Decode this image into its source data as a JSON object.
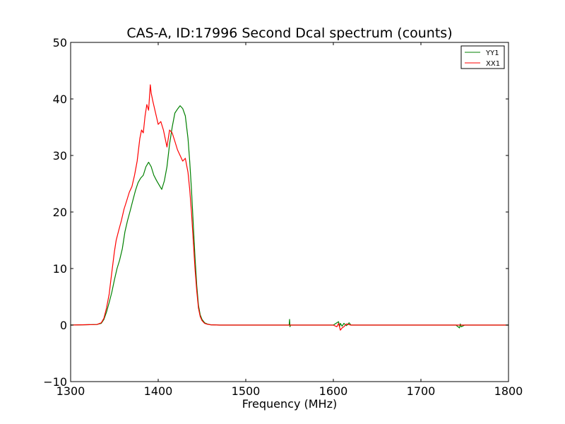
{
  "chart_data": {
    "type": "line",
    "title": "CAS-A, ID:17996 Second Dcal spectrum (counts)",
    "xlabel": "Frequency (MHz)",
    "ylabel": "",
    "xlim": [
      1300,
      1800
    ],
    "ylim": [
      -10,
      50
    ],
    "x_ticks": [
      1300,
      1400,
      1500,
      1600,
      1700,
      1800
    ],
    "y_ticks": [
      -10,
      0,
      10,
      20,
      30,
      40,
      50
    ],
    "x_tick_labels": [
      "1300",
      "1400",
      "1500",
      "1600",
      "1700",
      "1800"
    ],
    "y_tick_labels": [
      "−10",
      "0",
      "10",
      "20",
      "30",
      "40",
      "50"
    ],
    "grid": false,
    "legend": "top-right",
    "series": [
      {
        "name": "YY1",
        "color": "#008000",
        "x": [
          1300,
          1330,
          1335,
          1338,
          1341,
          1344,
          1347,
          1350,
          1353,
          1356,
          1359,
          1362,
          1365,
          1368,
          1371,
          1374,
          1377,
          1380,
          1383,
          1386,
          1389,
          1392,
          1395,
          1398,
          1401,
          1404,
          1407,
          1410,
          1413,
          1416,
          1419,
          1422,
          1425,
          1428,
          1431,
          1434,
          1436,
          1438,
          1440,
          1442,
          1444,
          1446,
          1448,
          1450,
          1453,
          1456,
          1460,
          1470,
          1500,
          1549.5,
          1550,
          1550.5,
          1551,
          1600,
          1604,
          1606,
          1607,
          1608,
          1610,
          1612,
          1615,
          1618,
          1620,
          1640,
          1700,
          1740,
          1744,
          1745,
          1746,
          1750,
          1800
        ],
        "y": [
          0,
          0.1,
          0.3,
          1.0,
          2.3,
          4.0,
          5.8,
          8.0,
          10.0,
          11.5,
          13.5,
          16.5,
          18.5,
          20.2,
          22.0,
          23.8,
          25.2,
          26.0,
          26.5,
          28.0,
          28.8,
          28.0,
          26.5,
          25.6,
          24.8,
          24.0,
          25.5,
          28.0,
          32.0,
          35.0,
          37.5,
          38.2,
          38.8,
          38.3,
          37.0,
          33.0,
          29.0,
          24.0,
          18.0,
          12.0,
          7.0,
          3.5,
          1.8,
          1.0,
          0.4,
          0.2,
          0.05,
          0,
          0,
          0,
          1.0,
          -0.3,
          0,
          0,
          0.4,
          0.6,
          -0.3,
          0.3,
          -0.2,
          0.3,
          -0.1,
          0.4,
          0,
          0,
          0,
          0,
          -0.5,
          0.2,
          -0.3,
          0,
          0
        ]
      },
      {
        "name": "XX1",
        "color": "#ff0000",
        "x": [
          1300,
          1330,
          1335,
          1338,
          1341,
          1344,
          1346,
          1348,
          1350,
          1352,
          1355,
          1358,
          1361,
          1364,
          1367,
          1370,
          1373,
          1376,
          1379,
          1381,
          1383,
          1385,
          1387,
          1389,
          1391,
          1392,
          1394,
          1397,
          1400,
          1403,
          1406,
          1408,
          1410,
          1413,
          1416,
          1419,
          1422,
          1425,
          1428,
          1431,
          1434,
          1436,
          1438,
          1440,
          1442,
          1444,
          1446,
          1448,
          1450,
          1453,
          1456,
          1460,
          1470,
          1500,
          1600,
          1604,
          1606,
          1608,
          1610,
          1612,
          1615,
          1620,
          1640,
          1700,
          1800
        ],
        "y": [
          0,
          0.1,
          0.4,
          1.2,
          3.0,
          5.5,
          8.0,
          10.5,
          13.0,
          15.0,
          16.8,
          18.5,
          20.5,
          22.0,
          23.5,
          24.5,
          26.5,
          29.0,
          33.0,
          34.5,
          34.0,
          37.0,
          39.0,
          38.0,
          42.5,
          41.0,
          39.5,
          37.5,
          35.5,
          36.0,
          34.5,
          33.0,
          31.5,
          34.5,
          34.0,
          32.5,
          31.0,
          30.0,
          29.0,
          29.5,
          27.0,
          24.0,
          20.0,
          15.0,
          10.0,
          6.0,
          3.0,
          1.5,
          0.8,
          0.3,
          0.15,
          0.05,
          0,
          0,
          0,
          -0.3,
          0.3,
          -0.9,
          -0.5,
          -0.3,
          0.2,
          0,
          0,
          0,
          0
        ]
      }
    ]
  }
}
